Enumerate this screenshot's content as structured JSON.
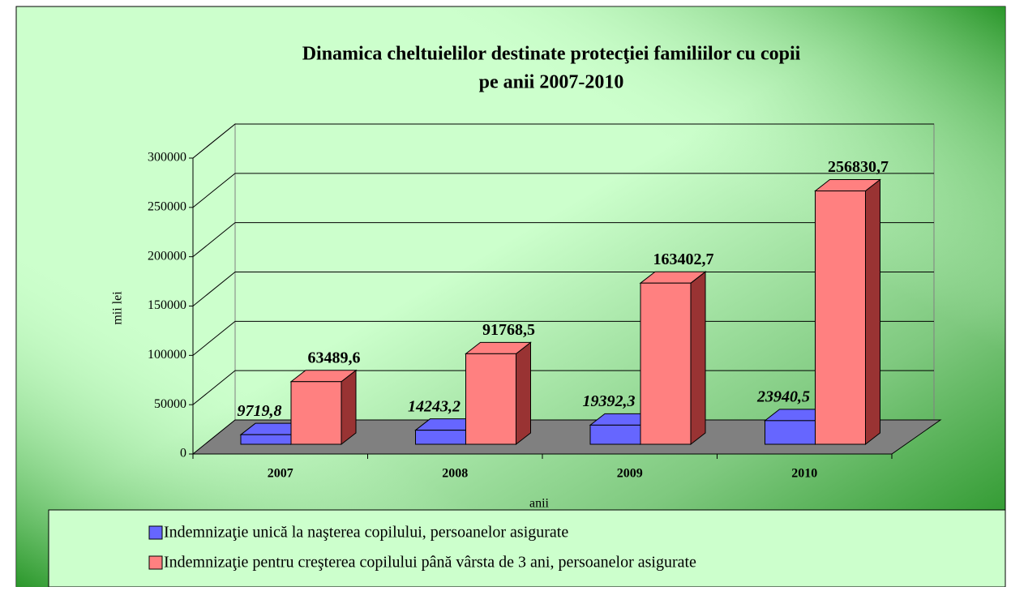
{
  "chart_data": {
    "type": "bar3d",
    "title": [
      "Dinamica cheltuielilor destinate protecţiei familiilor cu copii",
      "pe anii 2007-2010"
    ],
    "y_label": "mii lei",
    "x_label": "anii",
    "categories": [
      "2007",
      "2008",
      "2009",
      "2010"
    ],
    "series": [
      {
        "name": "Indemnizaţie unică la naşterea copilului, persoanelor asigurate",
        "color": "#6666ff",
        "side_color": "#333399",
        "values": [
          9719.8,
          14243.2,
          19392.3,
          23940.5
        ],
        "value_labels": [
          "9719,8",
          "14243,2",
          "19392,3",
          "23940,5"
        ]
      },
      {
        "name": "Indemnizaţie pentru creşterea copilului până vârsta de 3 ani, persoanelor asigurate",
        "color": "#ff8080",
        "side_color": "#993333",
        "values": [
          63489.6,
          91768.5,
          163402.7,
          256830.7
        ],
        "value_labels": [
          "63489,6",
          "91768,5",
          "163402,7",
          "256830,7"
        ]
      }
    ],
    "ylim": [
      0,
      300000
    ],
    "yticks": [
      0,
      50000,
      100000,
      150000,
      200000,
      250000,
      300000
    ],
    "grid": true
  }
}
